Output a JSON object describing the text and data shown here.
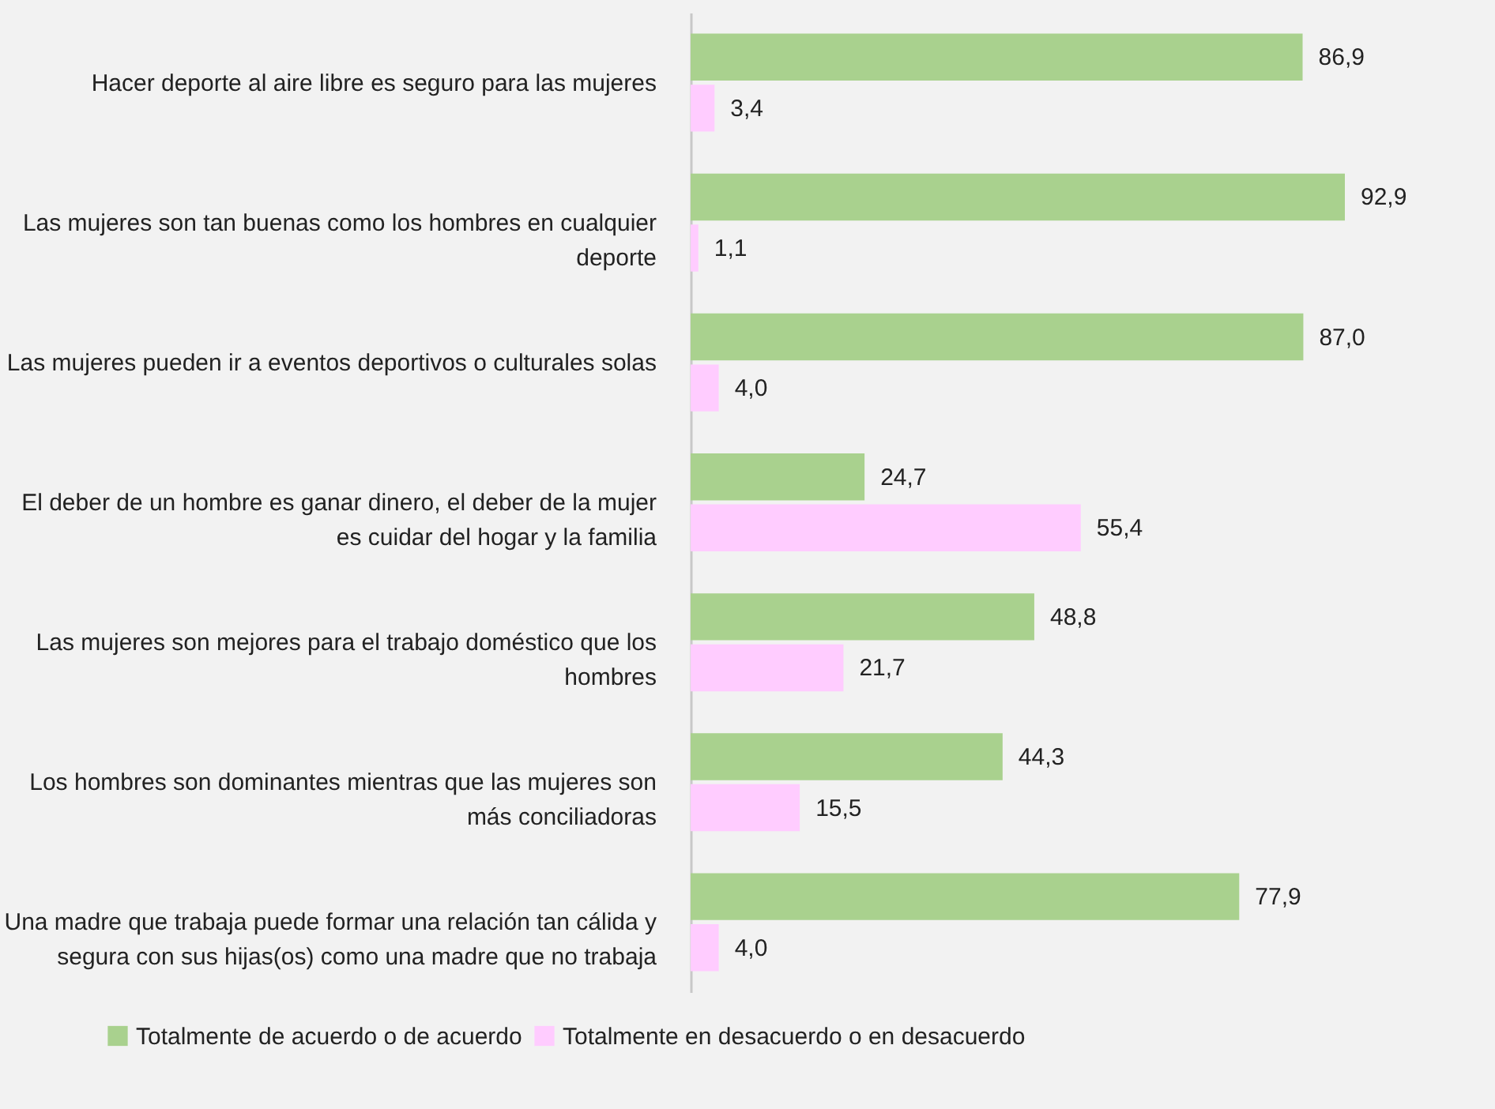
{
  "chart_data": {
    "type": "bar",
    "orientation": "horizontal",
    "categories": [
      "Hacer deporte al aire libre es seguro para las mujeres",
      "Las mujeres son tan buenas como los hombres en cualquier deporte",
      "Las mujeres pueden ir a eventos deportivos o culturales solas",
      "El deber de un hombre es ganar dinero, el deber de la mujer es cuidar del hogar y la familia",
      "Las mujeres son mejores para el trabajo doméstico que los hombres",
      "Los hombres son dominantes mientras que las mujeres son más conciliadoras",
      "Una madre que trabaja puede formar una relación tan cálida y segura con sus hijas(os) como una madre que no trabaja"
    ],
    "series": [
      {
        "name": "Totalmente de acuerdo o de acuerdo",
        "color": "#a9d18e",
        "values": [
          86.9,
          92.9,
          87.0,
          24.7,
          48.8,
          44.3,
          77.9
        ],
        "value_labels": [
          "86,9",
          "92,9",
          "87,0",
          "24,7",
          "48,8",
          "44,3",
          "77,9"
        ]
      },
      {
        "name": "Totalmente en desacuerdo o en desacuerdo",
        "color": "#ffccff",
        "values": [
          3.4,
          1.1,
          4.0,
          55.4,
          21.7,
          15.5,
          4.0
        ],
        "value_labels": [
          "3,4",
          "1,1",
          "4,0",
          "55,4",
          "21,7",
          "15,5",
          "4,0"
        ]
      }
    ],
    "legend": "bottom"
  }
}
